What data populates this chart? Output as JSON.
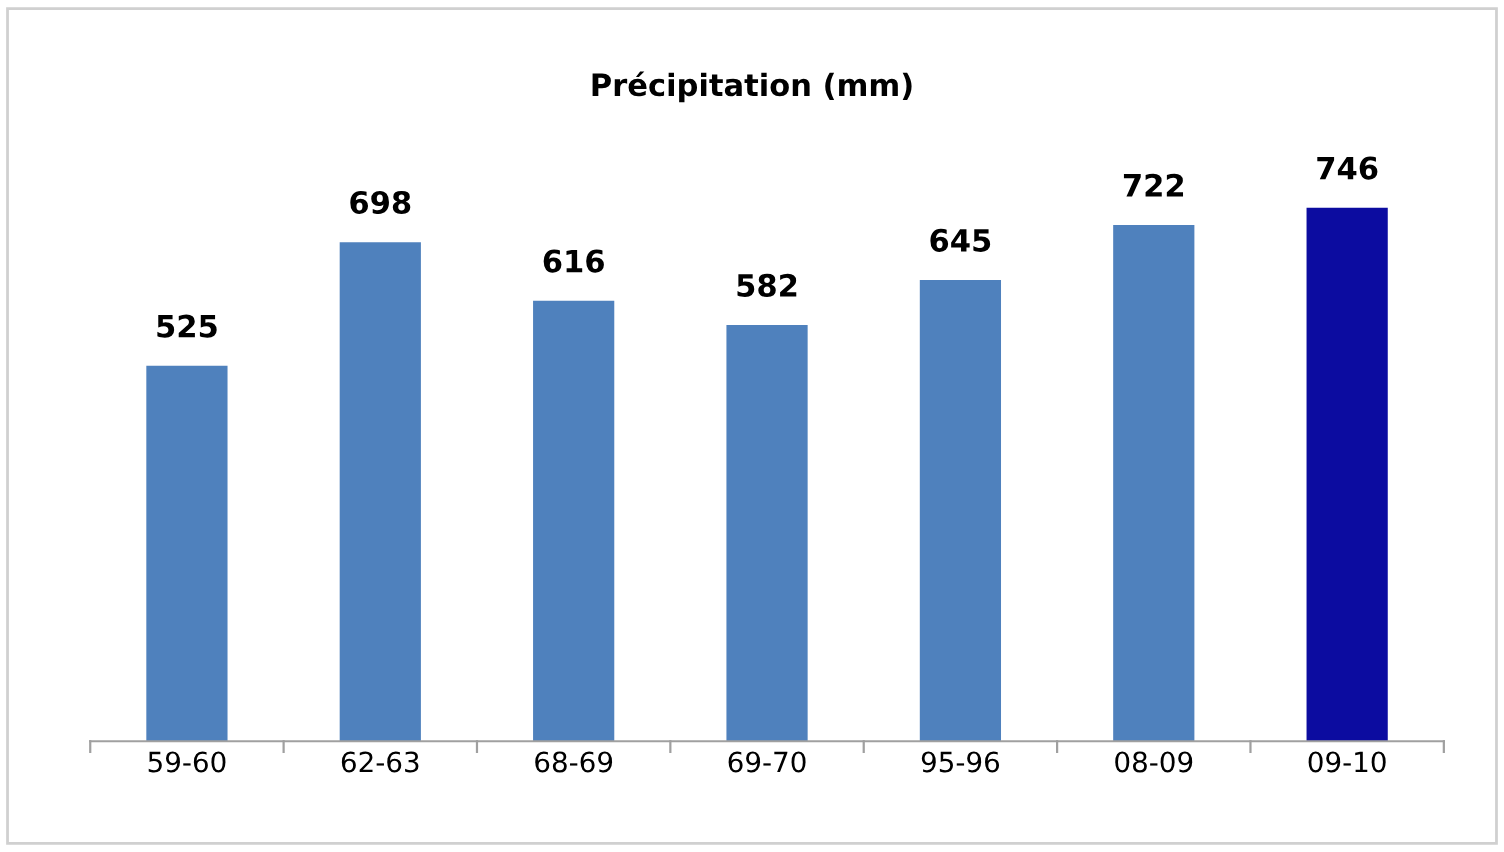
{
  "chart_data": {
    "type": "bar",
    "title": "Précipitation (mm)",
    "categories": [
      "59-60",
      "62-63",
      "68-69",
      "69-70",
      "95-96",
      "08-09",
      "09-10"
    ],
    "values": [
      525,
      698,
      616,
      582,
      645,
      722,
      746
    ],
    "colors": [
      "#4f81bd",
      "#4f81bd",
      "#4f81bd",
      "#4f81bd",
      "#4f81bd",
      "#4f81bd",
      "#0c0ca0"
    ],
    "data_labels": true,
    "grid": false,
    "legend": false,
    "tick_labels": "x"
  }
}
